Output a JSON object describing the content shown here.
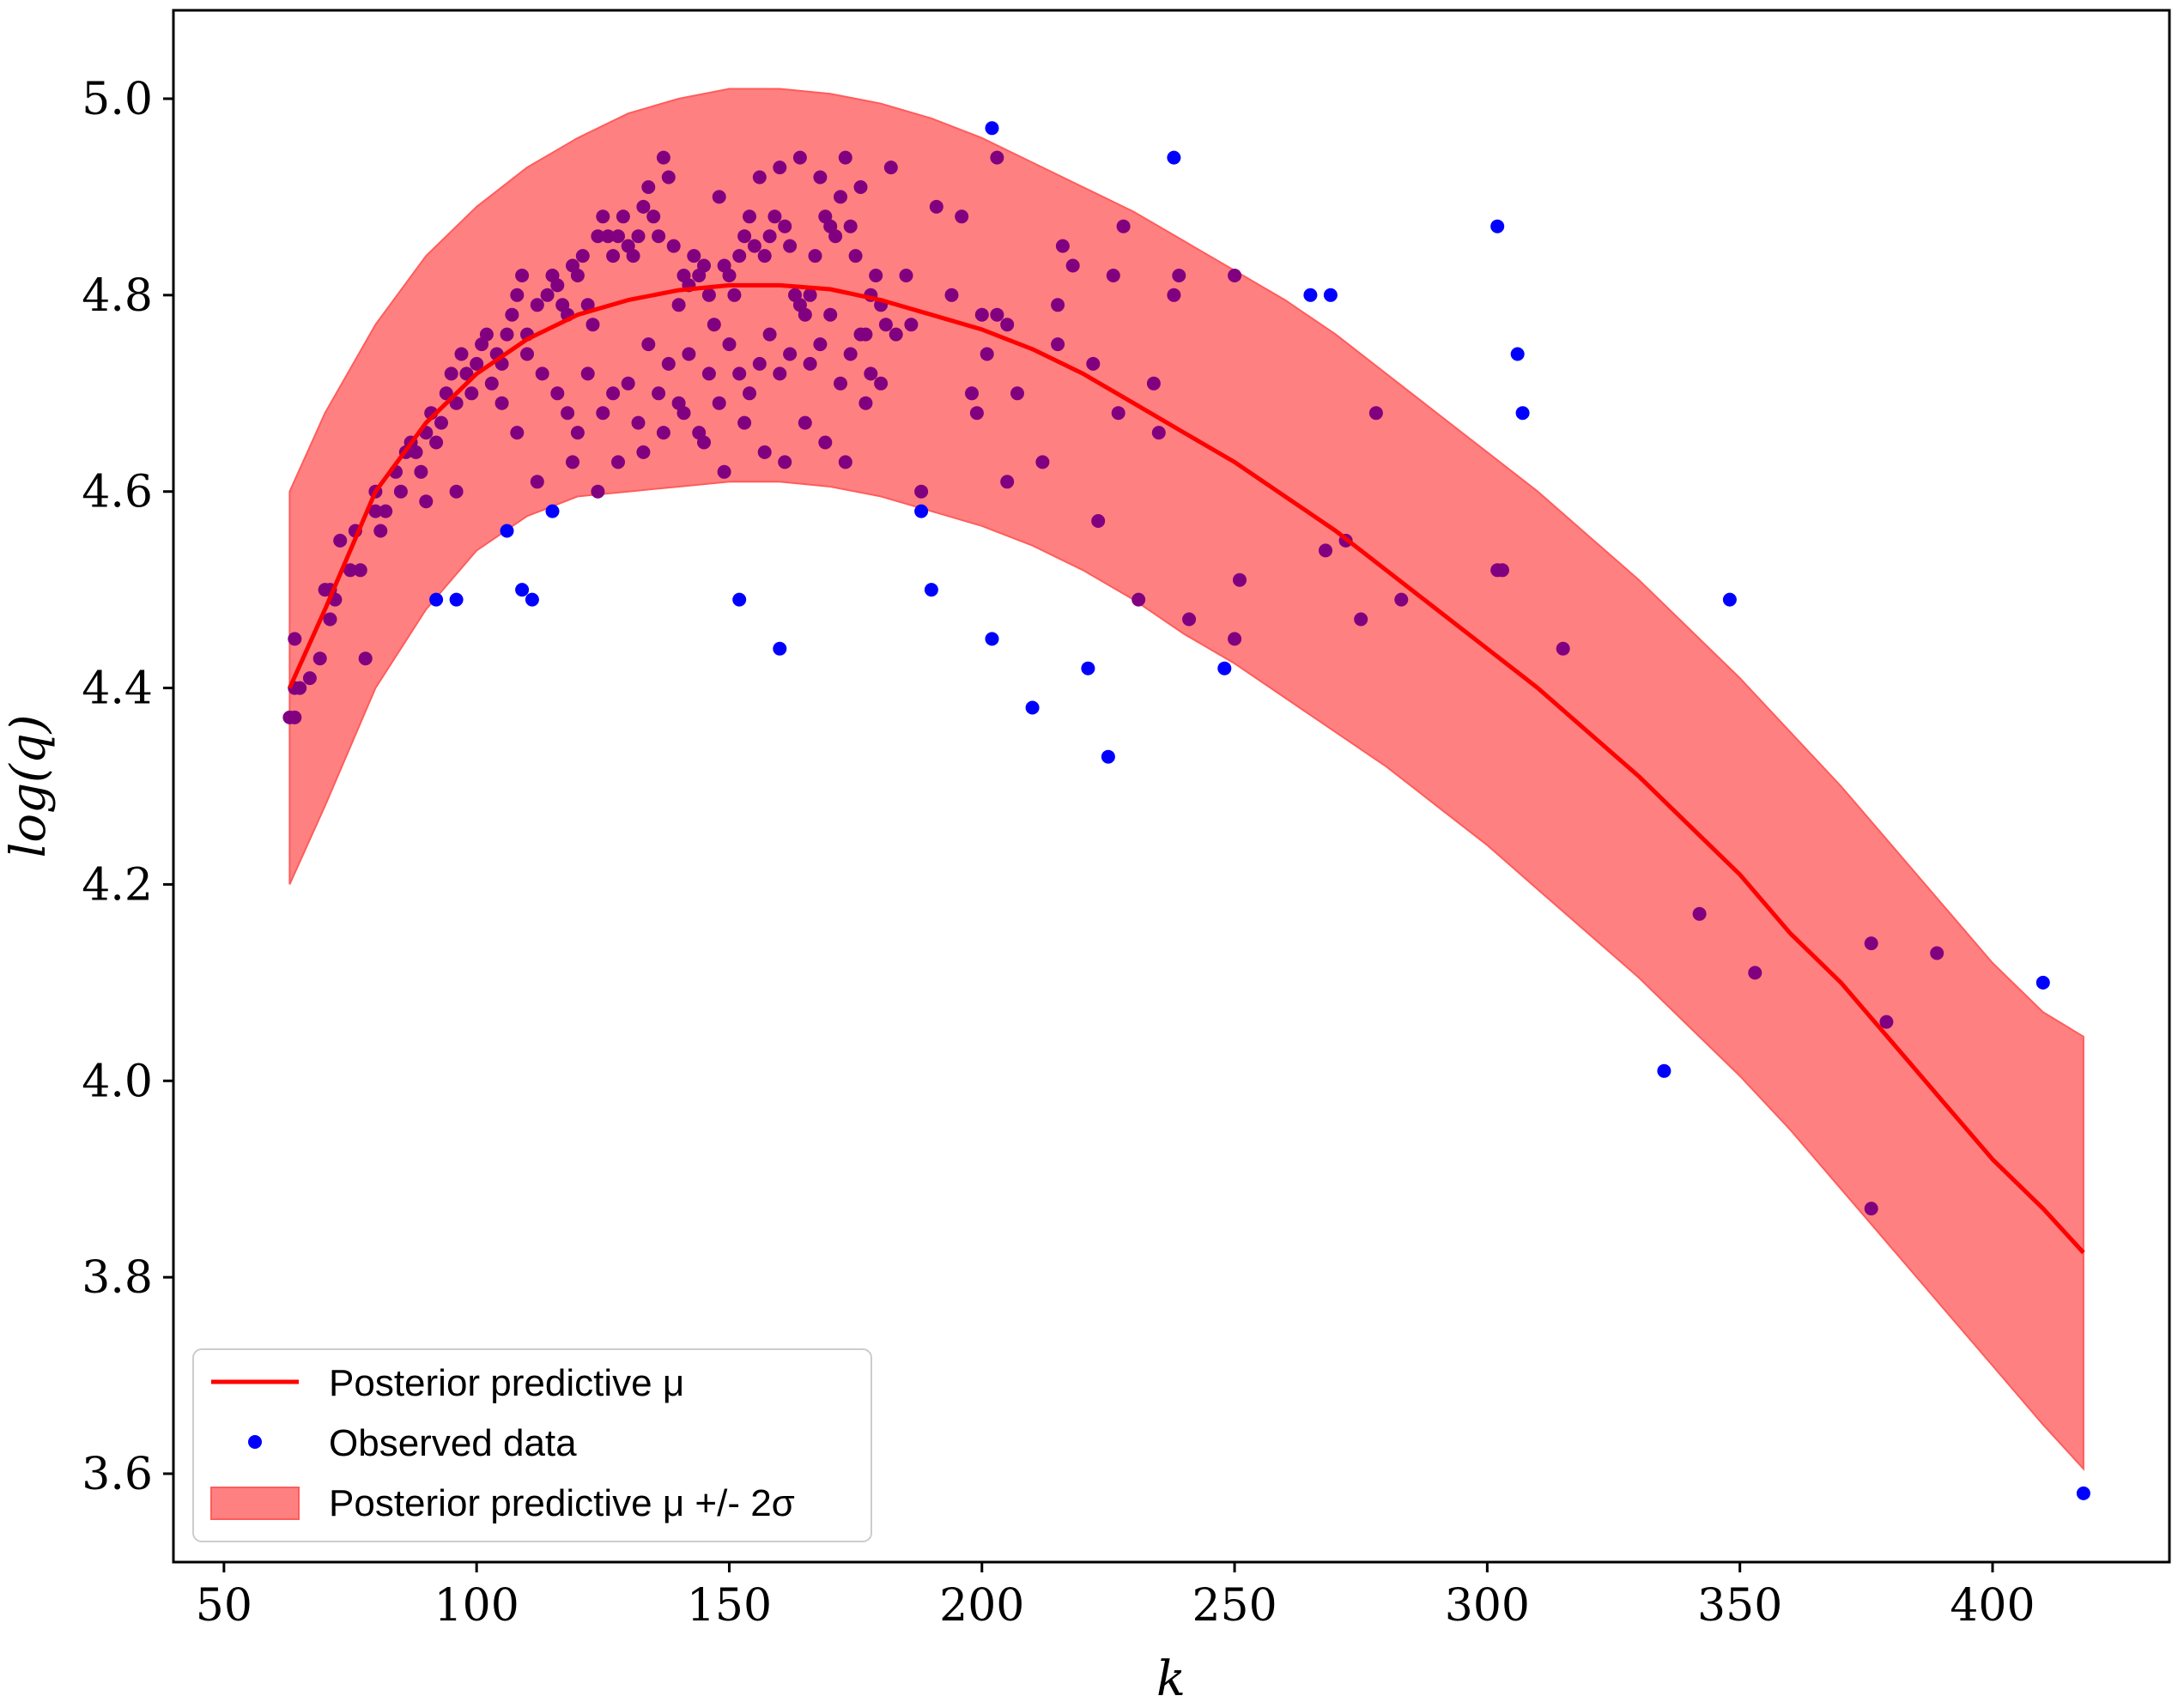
{
  "chart_data": {
    "type": "scatter",
    "xlabel": "k",
    "ylabel": "log(q)",
    "xlim": [
      40,
      435
    ],
    "ylim": [
      3.51,
      5.09
    ],
    "grid": false,
    "x_ticks": [
      50,
      100,
      150,
      200,
      250,
      300,
      350,
      400
    ],
    "y_ticks": [
      3.6,
      3.8,
      4.0,
      4.2,
      4.4,
      4.6,
      4.8,
      5.0
    ],
    "legend": {
      "placement": "bottom-left",
      "entries": [
        {
          "label": "Posterior predictive μ",
          "kind": "line",
          "color": "#ff0000"
        },
        {
          "label": "Observed data",
          "kind": "marker",
          "color": "#0000ff"
        },
        {
          "label": "Posterior predictive μ +/- 2σ",
          "kind": "patch",
          "color": "#ff8080"
        }
      ]
    },
    "colors": {
      "mean_line": "#ff0000",
      "band_fill": "#ff8080",
      "band_edge": "#ff5c5c",
      "points_outside_band": "#0000ff",
      "points_inside_band": "#800080"
    },
    "series": [
      {
        "name": "Posterior predictive μ",
        "kind": "line",
        "x": [
          63,
          70,
          80,
          90,
          100,
          110,
          120,
          130,
          140,
          150,
          160,
          170,
          180,
          190,
          200,
          210,
          220,
          230,
          240,
          250,
          260,
          270,
          280,
          290,
          300,
          310,
          320,
          330,
          340,
          350,
          360,
          370,
          380,
          390,
          400,
          410,
          418
        ],
        "y": [
          4.4,
          4.48,
          4.6,
          4.67,
          4.72,
          4.755,
          4.78,
          4.795,
          4.805,
          4.81,
          4.81,
          4.806,
          4.795,
          4.78,
          4.765,
          4.745,
          4.72,
          4.69,
          4.66,
          4.63,
          4.595,
          4.56,
          4.52,
          4.48,
          4.44,
          4.4,
          4.355,
          4.31,
          4.26,
          4.21,
          4.15,
          4.1,
          4.04,
          3.98,
          3.92,
          3.87,
          3.825
        ]
      },
      {
        "name": "Posterior predictive μ +/- 2σ",
        "kind": "band",
        "x": [
          63,
          70,
          80,
          90,
          100,
          110,
          120,
          130,
          140,
          150,
          160,
          170,
          180,
          190,
          200,
          210,
          220,
          230,
          240,
          250,
          260,
          270,
          280,
          290,
          300,
          310,
          320,
          330,
          340,
          350,
          360,
          370,
          380,
          390,
          400,
          410,
          418
        ],
        "upper": [
          4.6,
          4.68,
          4.77,
          4.84,
          4.89,
          4.93,
          4.96,
          4.985,
          5.0,
          5.01,
          5.01,
          5.005,
          4.995,
          4.98,
          4.96,
          4.935,
          4.91,
          4.885,
          4.855,
          4.825,
          4.795,
          4.76,
          4.72,
          4.68,
          4.64,
          4.6,
          4.555,
          4.51,
          4.46,
          4.41,
          4.355,
          4.3,
          4.24,
          4.18,
          4.12,
          4.07,
          4.045
        ],
        "lower": [
          4.2,
          4.28,
          4.4,
          4.48,
          4.54,
          4.575,
          4.595,
          4.6,
          4.605,
          4.61,
          4.61,
          4.605,
          4.595,
          4.58,
          4.565,
          4.545,
          4.52,
          4.49,
          4.455,
          4.425,
          4.39,
          4.355,
          4.32,
          4.28,
          4.24,
          4.195,
          4.15,
          4.105,
          4.055,
          4.005,
          3.95,
          3.89,
          3.83,
          3.77,
          3.71,
          3.65,
          3.605
        ]
      },
      {
        "name": "Observed data",
        "kind": "scatter",
        "points": [
          [
            63,
            4.37
          ],
          [
            64,
            4.37
          ],
          [
            64,
            4.4
          ],
          [
            65,
            4.4
          ],
          [
            64,
            4.45
          ],
          [
            67,
            4.41
          ],
          [
            69,
            4.43
          ],
          [
            70,
            4.5
          ],
          [
            71,
            4.5
          ],
          [
            71,
            4.47
          ],
          [
            72,
            4.49
          ],
          [
            73,
            4.55
          ],
          [
            75,
            4.52
          ],
          [
            77,
            4.52
          ],
          [
            78,
            4.43
          ],
          [
            76,
            4.56
          ],
          [
            80,
            4.58
          ],
          [
            81,
            4.56
          ],
          [
            80,
            4.6
          ],
          [
            82,
            4.58
          ],
          [
            84,
            4.62
          ],
          [
            85,
            4.6
          ],
          [
            86,
            4.64
          ],
          [
            87,
            4.65
          ],
          [
            88,
            4.64
          ],
          [
            89,
            4.62
          ],
          [
            90,
            4.66
          ],
          [
            90,
            4.59
          ],
          [
            91,
            4.68
          ],
          [
            92,
            4.65
          ],
          [
            93,
            4.67
          ],
          [
            94,
            4.7
          ],
          [
            95,
            4.72
          ],
          [
            96,
            4.69
          ],
          [
            96,
            4.6
          ],
          [
            97,
            4.74
          ],
          [
            98,
            4.72
          ],
          [
            99,
            4.7
          ],
          [
            100,
            4.73
          ],
          [
            101,
            4.75
          ],
          [
            102,
            4.76
          ],
          [
            103,
            4.71
          ],
          [
            104,
            4.74
          ],
          [
            105,
            4.73
          ],
          [
            106,
            4.76
          ],
          [
            107,
            4.78
          ],
          [
            108,
            4.8
          ],
          [
            109,
            4.82
          ],
          [
            110,
            4.76
          ],
          [
            112,
            4.79
          ],
          [
            114,
            4.8
          ],
          [
            115,
            4.82
          ],
          [
            116,
            4.81
          ],
          [
            117,
            4.79
          ],
          [
            118,
            4.78
          ],
          [
            119,
            4.83
          ],
          [
            120,
            4.82
          ],
          [
            121,
            4.84
          ],
          [
            122,
            4.79
          ],
          [
            123,
            4.77
          ],
          [
            124,
            4.86
          ],
          [
            125,
            4.88
          ],
          [
            126,
            4.86
          ],
          [
            127,
            4.84
          ],
          [
            128,
            4.86
          ],
          [
            129,
            4.88
          ],
          [
            130,
            4.85
          ],
          [
            131,
            4.84
          ],
          [
            132,
            4.86
          ],
          [
            133,
            4.89
          ],
          [
            134,
            4.91
          ],
          [
            135,
            4.88
          ],
          [
            136,
            4.86
          ],
          [
            137,
            4.94
          ],
          [
            138,
            4.92
          ],
          [
            139,
            4.85
          ],
          [
            140,
            4.79
          ],
          [
            141,
            4.82
          ],
          [
            142,
            4.81
          ],
          [
            143,
            4.84
          ],
          [
            144,
            4.82
          ],
          [
            145,
            4.83
          ],
          [
            146,
            4.8
          ],
          [
            147,
            4.77
          ],
          [
            148,
            4.9
          ],
          [
            149,
            4.83
          ],
          [
            150,
            4.82
          ],
          [
            151,
            4.8
          ],
          [
            152,
            4.84
          ],
          [
            153,
            4.86
          ],
          [
            154,
            4.88
          ],
          [
            155,
            4.85
          ],
          [
            156,
            4.92
          ],
          [
            157,
            4.84
          ],
          [
            158,
            4.86
          ],
          [
            159,
            4.88
          ],
          [
            160,
            4.93
          ],
          [
            161,
            4.87
          ],
          [
            162,
            4.85
          ],
          [
            163,
            4.8
          ],
          [
            164,
            4.94
          ],
          [
            165,
            4.78
          ],
          [
            166,
            4.8
          ],
          [
            167,
            4.84
          ],
          [
            168,
            4.92
          ],
          [
            169,
            4.88
          ],
          [
            170,
            4.87
          ],
          [
            171,
            4.86
          ],
          [
            172,
            4.9
          ],
          [
            173,
            4.94
          ],
          [
            174,
            4.87
          ],
          [
            175,
            4.84
          ],
          [
            176,
            4.91
          ],
          [
            177,
            4.76
          ],
          [
            178,
            4.8
          ],
          [
            179,
            4.82
          ],
          [
            180,
            4.79
          ],
          [
            181,
            4.77
          ],
          [
            182,
            4.93
          ],
          [
            183,
            4.76
          ],
          [
            185,
            4.82
          ],
          [
            186,
            4.77
          ],
          [
            110,
            4.74
          ],
          [
            113,
            4.72
          ],
          [
            116,
            4.7
          ],
          [
            118,
            4.68
          ],
          [
            120,
            4.66
          ],
          [
            122,
            4.72
          ],
          [
            125,
            4.68
          ],
          [
            127,
            4.7
          ],
          [
            130,
            4.71
          ],
          [
            132,
            4.67
          ],
          [
            134,
            4.75
          ],
          [
            136,
            4.7
          ],
          [
            138,
            4.73
          ],
          [
            140,
            4.69
          ],
          [
            142,
            4.74
          ],
          [
            144,
            4.66
          ],
          [
            146,
            4.72
          ],
          [
            148,
            4.69
          ],
          [
            150,
            4.75
          ],
          [
            152,
            4.72
          ],
          [
            154,
            4.7
          ],
          [
            156,
            4.73
          ],
          [
            158,
            4.76
          ],
          [
            160,
            4.72
          ],
          [
            162,
            4.74
          ],
          [
            164,
            4.79
          ],
          [
            166,
            4.73
          ],
          [
            168,
            4.75
          ],
          [
            170,
            4.78
          ],
          [
            172,
            4.71
          ],
          [
            174,
            4.74
          ],
          [
            176,
            4.76
          ],
          [
            178,
            4.72
          ],
          [
            180,
            4.71
          ],
          [
            105,
            4.69
          ],
          [
            108,
            4.66
          ],
          [
            112,
            4.61
          ],
          [
            115,
            4.58
          ],
          [
            119,
            4.63
          ],
          [
            124,
            4.6
          ],
          [
            128,
            4.63
          ],
          [
            133,
            4.64
          ],
          [
            137,
            4.66
          ],
          [
            141,
            4.68
          ],
          [
            145,
            4.65
          ],
          [
            149,
            4.62
          ],
          [
            153,
            4.67
          ],
          [
            157,
            4.64
          ],
          [
            161,
            4.63
          ],
          [
            165,
            4.67
          ],
          [
            169,
            4.65
          ],
          [
            173,
            4.63
          ],
          [
            177,
            4.69
          ],
          [
            92,
            4.49
          ],
          [
            96,
            4.49
          ],
          [
            106,
            4.56
          ],
          [
            188,
            4.6
          ],
          [
            191,
            4.89
          ],
          [
            194,
            4.8
          ],
          [
            196,
            4.88
          ],
          [
            198,
            4.7
          ],
          [
            199,
            4.68
          ],
          [
            200,
            4.78
          ],
          [
            201,
            4.74
          ],
          [
            203,
            4.78
          ],
          [
            205,
            4.77
          ],
          [
            205,
            4.61
          ],
          [
            207,
            4.7
          ],
          [
            212,
            4.63
          ],
          [
            215,
            4.75
          ],
          [
            215,
            4.79
          ],
          [
            216,
            4.85
          ],
          [
            218,
            4.83
          ],
          [
            222,
            4.73
          ],
          [
            223,
            4.57
          ],
          [
            226,
            4.82
          ],
          [
            227,
            4.68
          ],
          [
            228,
            4.87
          ],
          [
            234,
            4.71
          ],
          [
            235,
            4.66
          ],
          [
            238,
            4.8
          ],
          [
            239,
            4.82
          ],
          [
            241,
            4.47
          ],
          [
            250,
            4.82
          ],
          [
            250,
            4.45
          ],
          [
            251,
            4.51
          ],
          [
            265,
            4.8
          ],
          [
            268,
            4.54
          ],
          [
            272,
            4.55
          ],
          [
            275,
            4.47
          ],
          [
            278,
            4.68
          ],
          [
            283,
            4.49
          ],
          [
            302,
            4.52
          ],
          [
            303,
            4.52
          ],
          [
            315,
            4.44
          ],
          [
            342,
            4.17
          ],
          [
            353,
            4.11
          ],
          [
            376,
            4.14
          ],
          [
            379,
            4.06
          ],
          [
            389,
            4.13
          ],
          [
            410,
            4.1
          ],
          [
            109,
            4.5
          ],
          [
            111,
            4.49
          ],
          [
            152,
            4.49
          ],
          [
            160,
            4.44
          ],
          [
            188,
            4.58
          ],
          [
            190,
            4.5
          ],
          [
            202,
            4.45
          ],
          [
            210,
            4.38
          ],
          [
            221,
            4.42
          ],
          [
            225,
            4.33
          ],
          [
            231,
            4.49
          ],
          [
            248,
            4.42
          ],
          [
            202,
            4.97
          ],
          [
            203,
            4.94
          ],
          [
            238,
            4.94
          ],
          [
            269,
            4.8
          ],
          [
            302,
            4.87
          ],
          [
            306,
            4.74
          ],
          [
            307,
            4.68
          ],
          [
            335,
            4.01
          ],
          [
            348,
            4.49
          ],
          [
            376,
            3.87
          ],
          [
            418,
            3.58
          ]
        ]
      }
    ]
  }
}
